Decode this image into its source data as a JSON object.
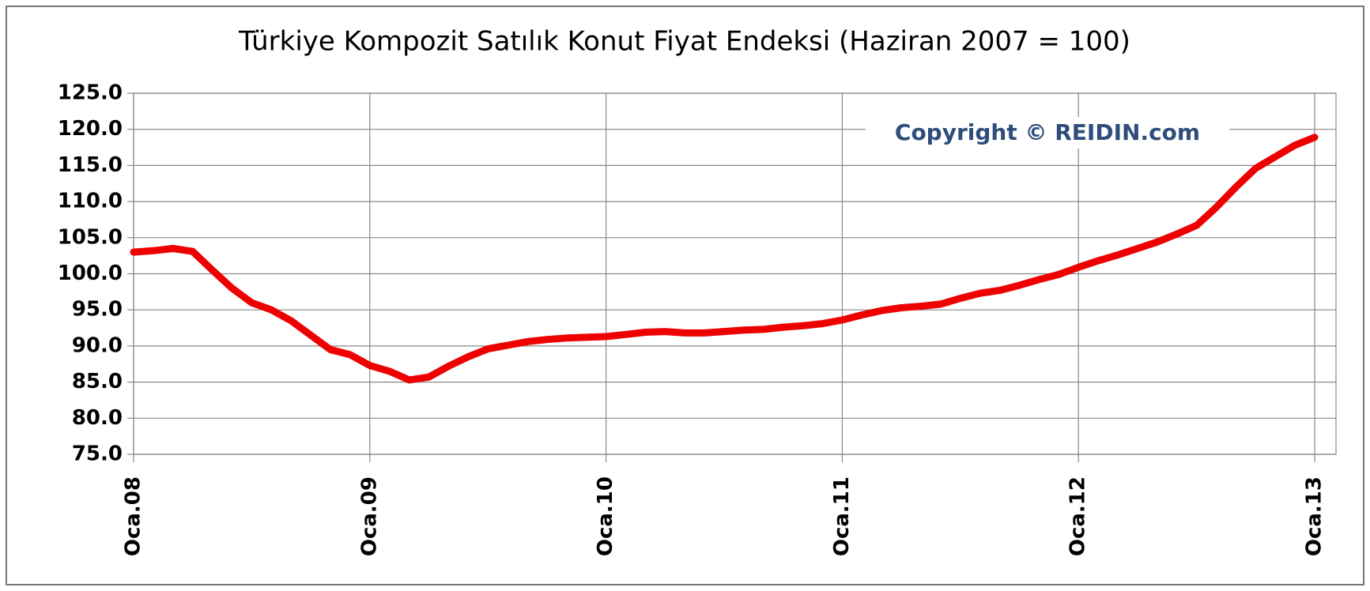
{
  "chart_data": {
    "type": "line",
    "title": "Türkiye Kompozit Satılık Konut Fiyat Endeksi (Haziran 2007 = 100)",
    "annotation": "Copyright © REIDIN.com",
    "categories": [
      "Oca.08",
      null,
      null,
      null,
      null,
      null,
      null,
      null,
      null,
      null,
      null,
      null,
      "Oca.09",
      null,
      null,
      null,
      null,
      null,
      null,
      null,
      null,
      null,
      null,
      null,
      "Oca.10",
      null,
      null,
      null,
      null,
      null,
      null,
      null,
      null,
      null,
      null,
      null,
      "Oca.11",
      null,
      null,
      null,
      null,
      null,
      null,
      null,
      null,
      null,
      null,
      null,
      "Oca.12",
      null,
      null,
      null,
      null,
      null,
      null,
      null,
      null,
      null,
      null,
      null,
      "Oca.13"
    ],
    "series": [
      {
        "color": "#ee0000",
        "values": [
          103,
          103.2,
          103.5,
          103.1,
          100.5,
          98,
          96,
          95,
          93.5,
          91.5,
          89.5,
          88.8,
          87.3,
          86.5,
          85.3,
          85.7,
          87.2,
          88.5,
          89.6,
          90.1,
          90.6,
          90.9,
          91.1,
          91.2,
          91.3,
          91.6,
          91.9,
          92.0,
          91.8,
          91.8,
          92.0,
          92.2,
          92.3,
          92.6,
          92.8,
          93.1,
          93.6,
          94.3,
          94.9,
          95.3,
          95.5,
          95.8,
          96.6,
          97.3,
          97.7,
          98.4,
          99.2,
          99.9,
          100.9,
          101.8,
          102.6,
          103.5,
          104.4,
          105.5,
          106.7,
          109.2,
          112,
          114.6,
          116.2,
          117.8,
          118.9
        ]
      }
    ],
    "ylim": [
      75,
      125
    ],
    "yticks": [
      {
        "value": 75,
        "label": "75.0"
      },
      {
        "value": 80,
        "label": "80.0"
      },
      {
        "value": 85,
        "label": "85.0"
      },
      {
        "value": 90,
        "label": "90.0"
      },
      {
        "value": 95,
        "label": "95.0"
      },
      {
        "value": 100,
        "label": "100.0"
      },
      {
        "value": 105,
        "label": "105.0"
      },
      {
        "value": 110,
        "label": "110.0"
      },
      {
        "value": 115,
        "label": "115.0"
      },
      {
        "value": 120,
        "label": "120.0"
      },
      {
        "value": 125,
        "label": "125.0"
      }
    ],
    "grid": true
  }
}
